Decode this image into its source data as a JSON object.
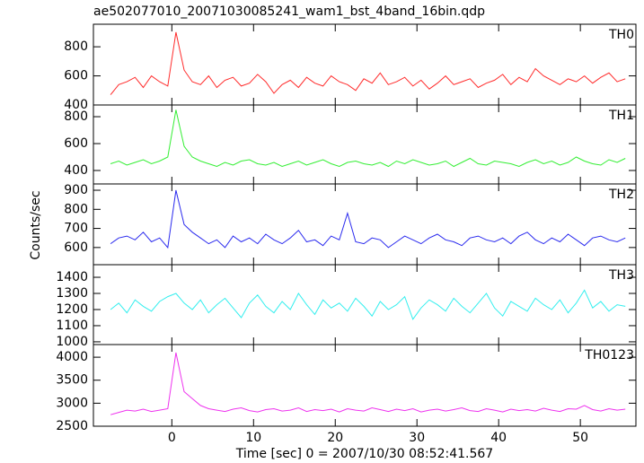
{
  "chart_data": [
    {
      "type": "line",
      "title": "ae502077010_20071030085241_wam1_bst_4band_16bin.qdp",
      "label": "TH0",
      "color": "#ff2a2a",
      "x": [
        -7.5,
        -6.5,
        -5.5,
        -4.5,
        -3.5,
        -2.5,
        -1.5,
        -0.5,
        0.5,
        1.5,
        2.5,
        3.5,
        4.5,
        5.5,
        6.5,
        7.5,
        8.5,
        9.5,
        10.5,
        11.5,
        12.5,
        13.5,
        14.5,
        15.5,
        16.5,
        17.5,
        18.5,
        19.5,
        20.5,
        21.5,
        22.5,
        23.5,
        24.5,
        25.5,
        26.5,
        27.5,
        28.5,
        29.5,
        30.5,
        31.5,
        32.5,
        33.5,
        34.5,
        35.5,
        36.5,
        37.5,
        38.5,
        39.5,
        40.5,
        41.5,
        42.5,
        43.5,
        44.5,
        45.5,
        46.5,
        47.5,
        48.5,
        49.5,
        50.5,
        51.5,
        52.5,
        53.5,
        54.5,
        55.5
      ],
      "values": [
        470,
        540,
        560,
        590,
        520,
        600,
        560,
        530,
        900,
        640,
        560,
        540,
        600,
        520,
        570,
        590,
        530,
        550,
        610,
        560,
        480,
        540,
        570,
        520,
        590,
        550,
        530,
        600,
        560,
        540,
        500,
        580,
        550,
        620,
        540,
        560,
        590,
        530,
        570,
        510,
        550,
        600,
        540,
        560,
        580,
        520,
        550,
        570,
        610,
        540,
        590,
        560,
        650,
        600,
        570,
        540,
        580,
        560,
        600,
        550,
        590,
        620,
        560,
        580
      ],
      "xlim": [
        -9.6,
        56.8
      ],
      "ylim": [
        400,
        955
      ],
      "yticks": [
        400,
        600,
        800
      ]
    },
    {
      "type": "line",
      "label": "TH1",
      "color": "#33ee33",
      "x": [
        -7.5,
        -6.5,
        -5.5,
        -4.5,
        -3.5,
        -2.5,
        -1.5,
        -0.5,
        0.5,
        1.5,
        2.5,
        3.5,
        4.5,
        5.5,
        6.5,
        7.5,
        8.5,
        9.5,
        10.5,
        11.5,
        12.5,
        13.5,
        14.5,
        15.5,
        16.5,
        17.5,
        18.5,
        19.5,
        20.5,
        21.5,
        22.5,
        23.5,
        24.5,
        25.5,
        26.5,
        27.5,
        28.5,
        29.5,
        30.5,
        31.5,
        32.5,
        33.5,
        34.5,
        35.5,
        36.5,
        37.5,
        38.5,
        39.5,
        40.5,
        41.5,
        42.5,
        43.5,
        44.5,
        45.5,
        46.5,
        47.5,
        48.5,
        49.5,
        50.5,
        51.5,
        52.5,
        53.5,
        54.5,
        55.5
      ],
      "values": [
        450,
        470,
        440,
        460,
        480,
        450,
        470,
        500,
        850,
        580,
        500,
        470,
        450,
        430,
        460,
        440,
        470,
        480,
        450,
        440,
        460,
        430,
        450,
        470,
        440,
        460,
        480,
        450,
        430,
        460,
        470,
        450,
        440,
        460,
        430,
        470,
        450,
        480,
        460,
        440,
        450,
        470,
        430,
        460,
        490,
        450,
        440,
        470,
        460,
        450,
        430,
        460,
        480,
        450,
        470,
        440,
        460,
        500,
        470,
        450,
        440,
        480,
        460,
        490
      ],
      "xlim": [
        -9.6,
        56.8
      ],
      "ylim": [
        300,
        887
      ],
      "yticks": [
        400,
        600,
        800
      ]
    },
    {
      "type": "line",
      "label": "TH2",
      "ylabel": "Counts/sec",
      "color": "#2a2aee",
      "x": [
        -7.5,
        -6.5,
        -5.5,
        -4.5,
        -3.5,
        -2.5,
        -1.5,
        -0.5,
        0.5,
        1.5,
        2.5,
        3.5,
        4.5,
        5.5,
        6.5,
        7.5,
        8.5,
        9.5,
        10.5,
        11.5,
        12.5,
        13.5,
        14.5,
        15.5,
        16.5,
        17.5,
        18.5,
        19.5,
        20.5,
        21.5,
        22.5,
        23.5,
        24.5,
        25.5,
        26.5,
        27.5,
        28.5,
        29.5,
        30.5,
        31.5,
        32.5,
        33.5,
        34.5,
        35.5,
        36.5,
        37.5,
        38.5,
        39.5,
        40.5,
        41.5,
        42.5,
        43.5,
        44.5,
        45.5,
        46.5,
        47.5,
        48.5,
        49.5,
        50.5,
        51.5,
        52.5,
        53.5,
        54.5,
        55.5
      ],
      "values": [
        620,
        650,
        660,
        640,
        680,
        630,
        650,
        600,
        900,
        720,
        680,
        650,
        620,
        640,
        600,
        660,
        630,
        650,
        620,
        670,
        640,
        620,
        650,
        690,
        630,
        640,
        610,
        660,
        640,
        780,
        630,
        620,
        650,
        640,
        600,
        630,
        660,
        640,
        620,
        650,
        670,
        640,
        630,
        610,
        650,
        660,
        640,
        630,
        650,
        620,
        660,
        680,
        640,
        620,
        650,
        630,
        670,
        640,
        610,
        650,
        660,
        640,
        630,
        650
      ],
      "xlim": [
        -9.6,
        56.8
      ],
      "ylim": [
        510,
        933
      ],
      "yticks": [
        600,
        700,
        800,
        900
      ]
    },
    {
      "type": "line",
      "label": "TH3",
      "color": "#33eeee",
      "x": [
        -7.5,
        -6.5,
        -5.5,
        -4.5,
        -3.5,
        -2.5,
        -1.5,
        -0.5,
        0.5,
        1.5,
        2.5,
        3.5,
        4.5,
        5.5,
        6.5,
        7.5,
        8.5,
        9.5,
        10.5,
        11.5,
        12.5,
        13.5,
        14.5,
        15.5,
        16.5,
        17.5,
        18.5,
        19.5,
        20.5,
        21.5,
        22.5,
        23.5,
        24.5,
        25.5,
        26.5,
        27.5,
        28.5,
        29.5,
        30.5,
        31.5,
        32.5,
        33.5,
        34.5,
        35.5,
        36.5,
        37.5,
        38.5,
        39.5,
        40.5,
        41.5,
        42.5,
        43.5,
        44.5,
        45.5,
        46.5,
        47.5,
        48.5,
        49.5,
        50.5,
        51.5,
        52.5,
        53.5,
        54.5,
        55.5
      ],
      "values": [
        1200,
        1240,
        1180,
        1260,
        1220,
        1190,
        1250,
        1280,
        1300,
        1240,
        1200,
        1260,
        1180,
        1230,
        1270,
        1210,
        1150,
        1240,
        1290,
        1220,
        1180,
        1250,
        1200,
        1300,
        1230,
        1170,
        1260,
        1210,
        1240,
        1190,
        1270,
        1220,
        1160,
        1250,
        1200,
        1230,
        1280,
        1140,
        1210,
        1260,
        1230,
        1190,
        1270,
        1220,
        1180,
        1240,
        1300,
        1210,
        1160,
        1250,
        1220,
        1190,
        1270,
        1230,
        1200,
        1260,
        1180,
        1240,
        1320,
        1210,
        1250,
        1190,
        1230,
        1220
      ],
      "xlim": [
        -9.6,
        56.8
      ],
      "ylim": [
        983,
        1478
      ],
      "yticks": [
        1000,
        1100,
        1200,
        1300,
        1400
      ]
    },
    {
      "type": "line",
      "label": "TH0123",
      "xlabel": "Time [sec] 0 = 2007/10/30 08:52:41.567",
      "color": "#ee33ee",
      "x": [
        -7.5,
        -6.5,
        -5.5,
        -4.5,
        -3.5,
        -2.5,
        -1.5,
        -0.5,
        0.5,
        1.5,
        2.5,
        3.5,
        4.5,
        5.5,
        6.5,
        7.5,
        8.5,
        9.5,
        10.5,
        11.5,
        12.5,
        13.5,
        14.5,
        15.5,
        16.5,
        17.5,
        18.5,
        19.5,
        20.5,
        21.5,
        22.5,
        23.5,
        24.5,
        25.5,
        26.5,
        27.5,
        28.5,
        29.5,
        30.5,
        31.5,
        32.5,
        33.5,
        34.5,
        35.5,
        36.5,
        37.5,
        38.5,
        39.5,
        40.5,
        41.5,
        42.5,
        43.5,
        44.5,
        45.5,
        46.5,
        47.5,
        48.5,
        49.5,
        50.5,
        51.5,
        52.5,
        53.5,
        54.5,
        55.5
      ],
      "values": [
        2750,
        2800,
        2850,
        2830,
        2870,
        2820,
        2850,
        2880,
        4100,
        3250,
        3100,
        2950,
        2880,
        2850,
        2820,
        2870,
        2900,
        2840,
        2810,
        2860,
        2880,
        2830,
        2850,
        2900,
        2820,
        2860,
        2840,
        2870,
        2810,
        2880,
        2850,
        2830,
        2900,
        2860,
        2820,
        2870,
        2840,
        2880,
        2810,
        2850,
        2870,
        2830,
        2860,
        2900,
        2840,
        2820,
        2880,
        2850,
        2810,
        2870,
        2840,
        2860,
        2830,
        2890,
        2850,
        2820,
        2880,
        2870,
        2950,
        2860,
        2830,
        2880,
        2850,
        2870
      ],
      "xlim": [
        -9.6,
        56.8
      ],
      "ylim": [
        2500,
        4275
      ],
      "yticks": [
        2500,
        3000,
        3500,
        4000
      ],
      "xticks": [
        0,
        10,
        20,
        30,
        40,
        50
      ]
    }
  ]
}
